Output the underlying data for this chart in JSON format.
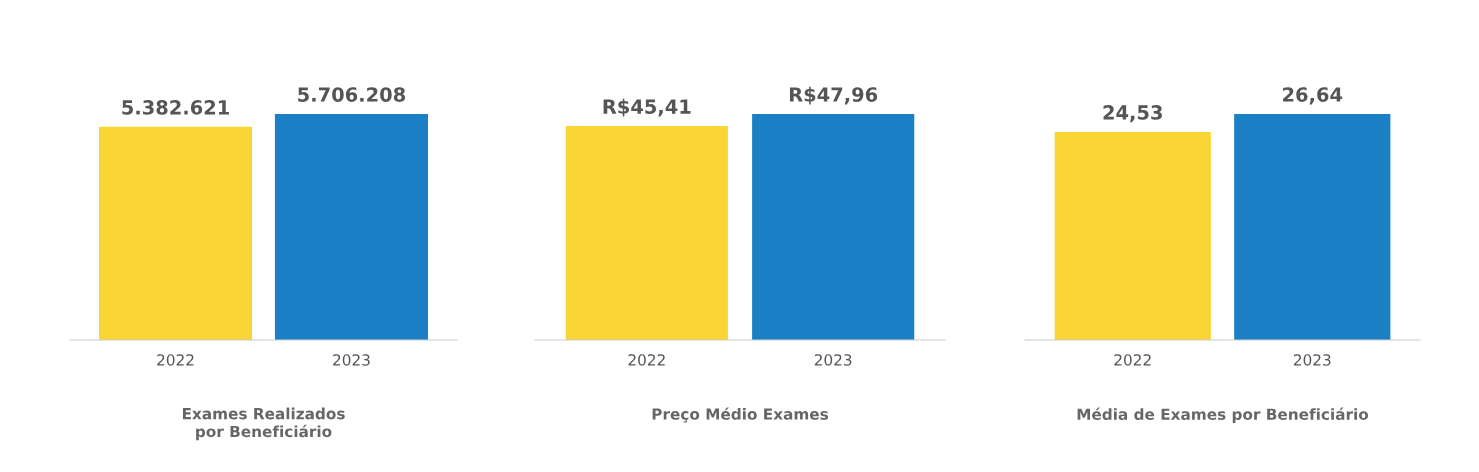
{
  "chart_data": [
    {
      "type": "bar",
      "xlabel": "Exames Realizados\npor Beneficiário",
      "categories": [
        "2022",
        "2023"
      ],
      "values": [
        5382621,
        5706208
      ],
      "colors": [
        "#f9d535",
        "#1a7fc4"
      ],
      "value_labels": [
        "5.382.621",
        "5.706.208"
      ],
      "grid": false,
      "legend": false
    },
    {
      "type": "bar",
      "xlabel": "Preço Médio Exames",
      "categories": [
        "2022",
        "2023"
      ],
      "values": [
        45.41,
        47.96
      ],
      "colors": [
        "#f9d535",
        "#1a7fc4"
      ],
      "value_labels": [
        "R$45,41",
        "R$47,96"
      ],
      "grid": false,
      "legend": false
    },
    {
      "type": "bar",
      "xlabel": "Média de Exames por Beneficiário",
      "categories": [
        "2022",
        "2023"
      ],
      "values": [
        24.53,
        26.64
      ],
      "colors": [
        "#f9d535",
        "#1a7fc4"
      ],
      "value_labels": [
        "24,53",
        "26,64"
      ],
      "grid": false,
      "legend": false
    }
  ]
}
